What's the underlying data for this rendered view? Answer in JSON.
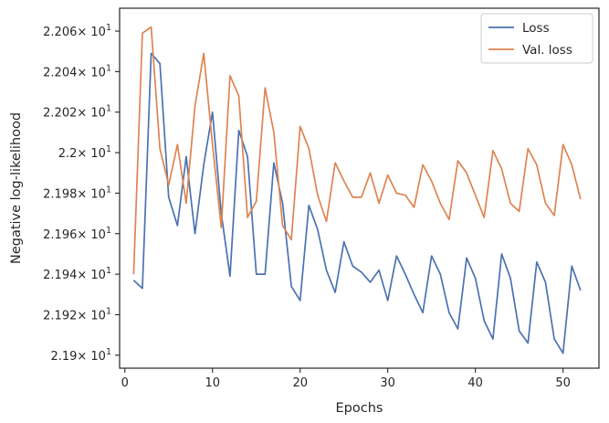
{
  "chart_data": {
    "type": "line",
    "xlabel": "Epochs",
    "ylabel": "Negative log-likelihood",
    "xlim": [
      -0.6,
      54.1
    ],
    "ylim": [
      21.8936,
      22.0713
    ],
    "x_ticks": [
      0,
      10,
      20,
      30,
      40,
      50
    ],
    "x_tick_labels": [
      "0",
      "10",
      "20",
      "30",
      "40",
      "50"
    ],
    "y_ticks": [
      21.9,
      21.92,
      21.94,
      21.96,
      21.98,
      22.0,
      22.02,
      22.04,
      22.06
    ],
    "y_tick_mantissas": [
      "2.19",
      "2.192",
      "2.194",
      "2.196",
      "2.198",
      "2.2",
      "2.202",
      "2.204",
      "2.206"
    ],
    "y_tick_suffix": "× 10",
    "y_tick_exponent": "1",
    "grid": false,
    "legend_position": "top-right",
    "x": [
      1,
      2,
      3,
      4,
      5,
      6,
      7,
      8,
      9,
      10,
      11,
      12,
      13,
      14,
      15,
      16,
      17,
      18,
      19,
      20,
      21,
      22,
      23,
      24,
      25,
      26,
      27,
      28,
      29,
      30,
      31,
      32,
      33,
      34,
      35,
      36,
      37,
      38,
      39,
      40,
      41,
      42,
      43,
      44,
      45,
      46,
      47,
      48,
      49,
      50,
      51,
      52
    ],
    "series": [
      {
        "name": "Loss",
        "color": "#4c72b0",
        "values": [
          21.937,
          21.933,
          22.049,
          22.044,
          21.978,
          21.964,
          21.998,
          21.96,
          21.994,
          22.02,
          21.97,
          21.939,
          22.011,
          21.998,
          21.94,
          21.94,
          21.995,
          21.975,
          21.934,
          21.927,
          21.974,
          21.962,
          21.942,
          21.931,
          21.956,
          21.944,
          21.941,
          21.936,
          21.942,
          21.927,
          21.949,
          21.94,
          21.93,
          21.921,
          21.949,
          21.94,
          21.921,
          21.913,
          21.948,
          21.938,
          21.917,
          21.908,
          21.95,
          21.938,
          21.912,
          21.906,
          21.946,
          21.936,
          21.908,
          21.901,
          21.944,
          21.932
        ]
      },
      {
        "name": "Val. loss",
        "color": "#dd8452",
        "values": [
          21.94,
          22.059,
          22.062,
          22.002,
          21.984,
          22.004,
          21.975,
          22.023,
          22.049,
          22.004,
          21.963,
          22.038,
          22.028,
          21.968,
          21.976,
          22.032,
          22.01,
          21.964,
          21.957,
          22.013,
          22.002,
          21.979,
          21.966,
          21.995,
          21.986,
          21.978,
          21.978,
          21.99,
          21.975,
          21.989,
          21.98,
          21.979,
          21.973,
          21.994,
          21.986,
          21.975,
          21.967,
          21.996,
          21.99,
          21.979,
          21.968,
          22.001,
          21.992,
          21.975,
          21.971,
          22.002,
          21.994,
          21.975,
          21.969,
          22.004,
          21.994,
          21.977
        ]
      }
    ]
  }
}
